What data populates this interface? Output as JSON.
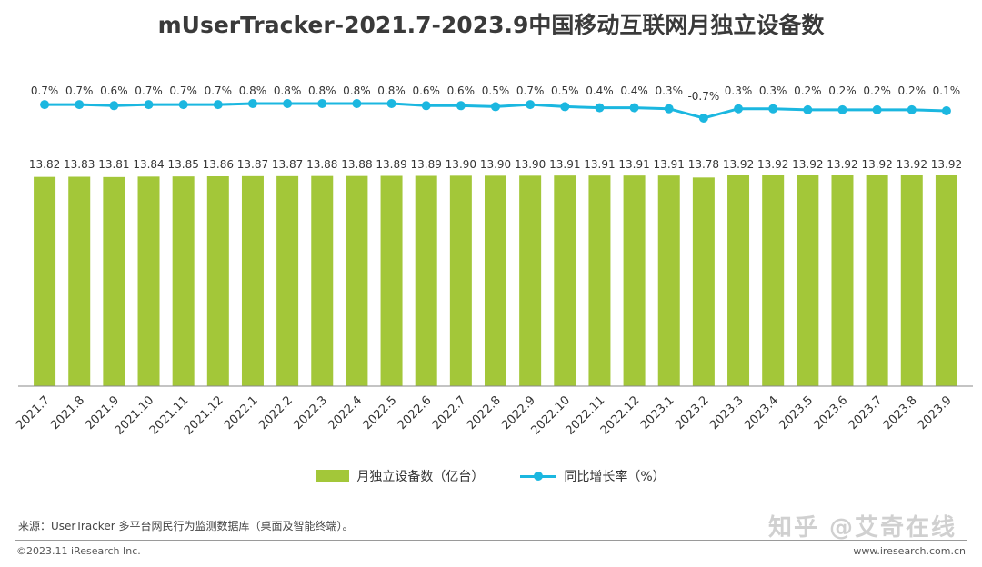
{
  "title": "mUserTracker-2021.7-2023.9中国移动互联网月独立设备数",
  "legend": {
    "bar_label": "月独立设备数（亿台）",
    "line_label": "同比增长率（%）"
  },
  "source": "来源：UserTracker 多平台网民行为监测数据库（桌面及智能终端）。",
  "copyright": "©2023.11 iResearch Inc.",
  "website": "www.iresearch.com.cn",
  "watermark": "知乎 @艾奇在线",
  "colors": {
    "bar": "#a3c739",
    "line": "#1bb7e0",
    "axis": "#888888"
  },
  "chart_data": {
    "type": "bar",
    "categories": [
      "2021.7",
      "2021.8",
      "2021.9",
      "2021.10",
      "2021.11",
      "2021.12",
      "2022.1",
      "2022.2",
      "2022.3",
      "2022.4",
      "2022.5",
      "2022.6",
      "2022.7",
      "2022.8",
      "2022.9",
      "2022.10",
      "2022.11",
      "2022.12",
      "2023.1",
      "2023.2",
      "2023.3",
      "2023.4",
      "2023.5",
      "2023.6",
      "2023.7",
      "2023.8",
      "2023.9"
    ],
    "series": [
      {
        "name": "月独立设备数（亿台）",
        "type": "bar",
        "values": [
          13.82,
          13.83,
          13.81,
          13.84,
          13.85,
          13.86,
          13.87,
          13.87,
          13.88,
          13.88,
          13.89,
          13.89,
          13.9,
          13.9,
          13.9,
          13.91,
          13.91,
          13.91,
          13.91,
          13.78,
          13.92,
          13.92,
          13.92,
          13.92,
          13.92,
          13.92,
          13.92
        ],
        "labels": [
          "13.82",
          "13.83",
          "13.81",
          "13.84",
          "13.85",
          "13.86",
          "13.87",
          "13.87",
          "13.88",
          "13.88",
          "13.89",
          "13.89",
          "13.90",
          "13.90",
          "13.90",
          "13.91",
          "13.91",
          "13.91",
          "13.91",
          "13.78",
          "13.92",
          "13.92",
          "13.92",
          "13.92",
          "13.92",
          "13.92",
          "13.92"
        ]
      },
      {
        "name": "同比增长率（%）",
        "type": "line",
        "values": [
          0.7,
          0.7,
          0.6,
          0.7,
          0.7,
          0.7,
          0.8,
          0.8,
          0.8,
          0.8,
          0.8,
          0.6,
          0.6,
          0.5,
          0.7,
          0.5,
          0.4,
          0.4,
          0.3,
          -0.7,
          0.3,
          0.3,
          0.2,
          0.2,
          0.2,
          0.2,
          0.1
        ],
        "labels": [
          "0.7%",
          "0.7%",
          "0.6%",
          "0.7%",
          "0.7%",
          "0.7%",
          "0.8%",
          "0.8%",
          "0.8%",
          "0.8%",
          "0.8%",
          "0.6%",
          "0.6%",
          "0.5%",
          "0.7%",
          "0.5%",
          "0.4%",
          "0.4%",
          "0.3%",
          "-0.7%",
          "0.3%",
          "0.3%",
          "0.2%",
          "0.2%",
          "0.2%",
          "0.2%",
          "0.1%"
        ]
      }
    ]
  }
}
